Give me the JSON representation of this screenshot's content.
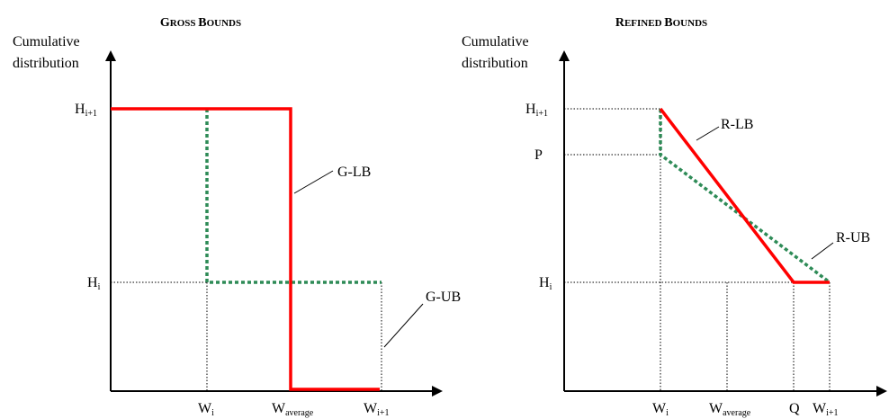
{
  "left_panel": {
    "title_cap1": "G",
    "title_rest1": "ROSS ",
    "title_cap2": "B",
    "title_rest2": "OUNDS",
    "y_axis_label_line1": "Cumulative",
    "y_axis_label_line2": "distribution",
    "y_ticks": {
      "h_i1": {
        "base": "H",
        "sub": "i+1"
      },
      "h_i": {
        "base": "H",
        "sub": "i"
      }
    },
    "x_ticks": {
      "w_i": {
        "base": "W",
        "sub": "i"
      },
      "w_avg": {
        "base": "W",
        "sub": "average"
      },
      "w_i1": {
        "base": "W",
        "sub": "i+1"
      }
    },
    "curve_labels": {
      "lower": "G-LB",
      "upper": "G-UB"
    }
  },
  "right_panel": {
    "title_cap1": "R",
    "title_rest1": "EFINED ",
    "title_cap2": "B",
    "title_rest2": "OUNDS",
    "y_axis_label_line1": "Cumulative",
    "y_axis_label_line2": "distribution",
    "y_ticks": {
      "h_i1": {
        "base": "H",
        "sub": "i+1"
      },
      "p": "P",
      "h_i": {
        "base": "H",
        "sub": "i"
      }
    },
    "x_ticks": {
      "w_i": {
        "base": "W",
        "sub": "i"
      },
      "w_avg": {
        "base": "W",
        "sub": "average"
      },
      "q": "Q",
      "w_i1": {
        "base": "W",
        "sub": "i+1"
      }
    },
    "curve_labels": {
      "lower": "R-LB",
      "upper": "R-UB"
    }
  },
  "colors": {
    "lower_bound": "#ff0000",
    "upper_bound": "#2e8b57",
    "axis": "#000000",
    "guide": "#000000"
  }
}
